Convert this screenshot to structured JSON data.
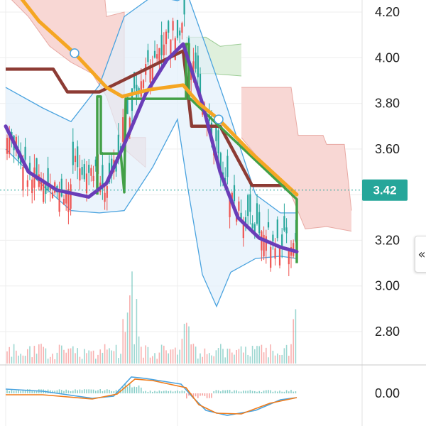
{
  "chart_data": {
    "type": "candlestick",
    "price_axis": {
      "ticks": [
        "4.20",
        "4.00",
        "3.80",
        "3.60",
        "3.40",
        "3.20",
        "3.00",
        "2.80"
      ],
      "range": [
        2.68,
        4.27
      ]
    },
    "last_price_label": "3.42",
    "last_price": 3.42,
    "macd_axis": {
      "ticks": [
        "0.00"
      ]
    },
    "colors": {
      "up": "#26a69a",
      "down": "#ef5350",
      "ema_orange": "#f5a623",
      "purple": "#6a3db8",
      "green_step": "#43a047",
      "brown_step": "#8d3b34",
      "bollinger": "#4aa3df",
      "cloud_bear": "#f8d7d4",
      "cloud_bull": "#dff0dc",
      "badge": "#26a69a"
    },
    "series": {
      "orange_line": [
        {
          "x": 20,
          "y": 4.3
        },
        {
          "x": 55,
          "y": 4.16
        },
        {
          "x": 105,
          "y": 4.02
        },
        {
          "x": 150,
          "y": 3.87
        },
        {
          "x": 172,
          "y": 3.83
        },
        {
          "x": 210,
          "y": 3.86
        },
        {
          "x": 258,
          "y": 3.88
        },
        {
          "x": 280,
          "y": 3.8
        },
        {
          "x": 308,
          "y": 3.73
        },
        {
          "x": 355,
          "y": 3.58
        },
        {
          "x": 390,
          "y": 3.48
        },
        {
          "x": 418,
          "y": 3.4
        }
      ],
      "orange_markers": [
        {
          "x": 105,
          "y": 4.02
        },
        {
          "x": 308,
          "y": 3.73
        }
      ],
      "purple_line": [
        {
          "x": 8,
          "y": 3.7
        },
        {
          "x": 40,
          "y": 3.5
        },
        {
          "x": 80,
          "y": 3.42
        },
        {
          "x": 125,
          "y": 3.39
        },
        {
          "x": 150,
          "y": 3.45
        },
        {
          "x": 175,
          "y": 3.62
        },
        {
          "x": 205,
          "y": 3.84
        },
        {
          "x": 235,
          "y": 3.99
        },
        {
          "x": 258,
          "y": 4.06
        },
        {
          "x": 285,
          "y": 3.8
        },
        {
          "x": 310,
          "y": 3.5
        },
        {
          "x": 335,
          "y": 3.3
        },
        {
          "x": 365,
          "y": 3.21
        },
        {
          "x": 395,
          "y": 3.17
        },
        {
          "x": 418,
          "y": 3.15
        }
      ],
      "green_step": [
        {
          "x": 137,
          "y": 3.4
        },
        {
          "x": 137,
          "y": 3.83
        },
        {
          "x": 142,
          "y": 3.83
        },
        {
          "x": 142,
          "y": 3.58
        },
        {
          "x": 170,
          "y": 3.58
        },
        {
          "x": 175,
          "y": 3.41
        },
        {
          "x": 177,
          "y": 3.82
        },
        {
          "x": 262,
          "y": 3.82
        },
        {
          "x": 262,
          "y": 4.06
        },
        {
          "x": 266,
          "y": 4.06
        },
        {
          "x": 266,
          "y": 3.82
        },
        {
          "x": 268,
          "y": 3.82
        },
        {
          "x": 418,
          "y": 3.38
        },
        {
          "x": 418,
          "y": 3.1
        }
      ],
      "brown_step": [
        {
          "x": 8,
          "y": 3.95
        },
        {
          "x": 75,
          "y": 3.95
        },
        {
          "x": 95,
          "y": 3.85
        },
        {
          "x": 140,
          "y": 3.85
        },
        {
          "x": 258,
          "y": 4.03
        },
        {
          "x": 270,
          "y": 3.7
        },
        {
          "x": 310,
          "y": 3.7
        },
        {
          "x": 355,
          "y": 3.44
        },
        {
          "x": 405,
          "y": 3.44
        }
      ],
      "bollinger_upper": [
        {
          "x": 8,
          "y": 3.87
        },
        {
          "x": 60,
          "y": 3.78
        },
        {
          "x": 100,
          "y": 3.72
        },
        {
          "x": 140,
          "y": 3.88
        },
        {
          "x": 175,
          "y": 4.18
        },
        {
          "x": 215,
          "y": 4.27
        },
        {
          "x": 250,
          "y": 4.25
        },
        {
          "x": 265,
          "y": 4.27
        },
        {
          "x": 290,
          "y": 4.05
        },
        {
          "x": 320,
          "y": 3.78
        },
        {
          "x": 360,
          "y": 3.4
        },
        {
          "x": 395,
          "y": 3.32
        },
        {
          "x": 418,
          "y": 3.32
        }
      ],
      "bollinger_lower": [
        {
          "x": 8,
          "y": 3.6
        },
        {
          "x": 60,
          "y": 3.44
        },
        {
          "x": 100,
          "y": 3.33
        },
        {
          "x": 140,
          "y": 3.32
        },
        {
          "x": 175,
          "y": 3.33
        },
        {
          "x": 215,
          "y": 3.52
        },
        {
          "x": 250,
          "y": 3.73
        },
        {
          "x": 265,
          "y": 3.42
        },
        {
          "x": 285,
          "y": 3.05
        },
        {
          "x": 305,
          "y": 2.91
        },
        {
          "x": 325,
          "y": 3.06
        },
        {
          "x": 360,
          "y": 3.12
        },
        {
          "x": 395,
          "y": 3.13
        },
        {
          "x": 418,
          "y": 3.12
        }
      ],
      "cloud_bear_top": [
        {
          "x": 8,
          "y": 4.35
        },
        {
          "x": 145,
          "y": 4.35
        },
        {
          "x": 150,
          "y": 4.18
        },
        {
          "x": 175,
          "y": 4.2
        },
        {
          "x": 175,
          "y": 3.65
        },
        {
          "x": 205,
          "y": 3.65
        },
        {
          "x": 205,
          "y": 3.52
        }
      ],
      "cloud_bear_bottom": [
        {
          "x": 8,
          "y": 4.28
        },
        {
          "x": 40,
          "y": 4.18
        },
        {
          "x": 70,
          "y": 4.05
        },
        {
          "x": 100,
          "y": 3.98
        },
        {
          "x": 130,
          "y": 3.93
        },
        {
          "x": 150,
          "y": 3.83
        },
        {
          "x": 175,
          "y": 3.6
        },
        {
          "x": 205,
          "y": 3.52
        }
      ],
      "cloud_bull_top": [
        {
          "x": 262,
          "y": 4.09
        },
        {
          "x": 290,
          "y": 4.09
        },
        {
          "x": 310,
          "y": 4.05
        },
        {
          "x": 340,
          "y": 4.06
        }
      ],
      "cloud_bull_bottom": [
        {
          "x": 262,
          "y": 3.93
        },
        {
          "x": 300,
          "y": 3.93
        },
        {
          "x": 340,
          "y": 3.92
        }
      ],
      "cloud_bear2_top": [
        {
          "x": 340,
          "y": 3.87
        },
        {
          "x": 410,
          "y": 3.87
        },
        {
          "x": 420,
          "y": 3.66
        },
        {
          "x": 455,
          "y": 3.66
        },
        {
          "x": 460,
          "y": 3.62
        },
        {
          "x": 485,
          "y": 3.62
        },
        {
          "x": 495,
          "y": 3.33
        }
      ],
      "cloud_bear2_bottom": [
        {
          "x": 340,
          "y": 3.65
        },
        {
          "x": 380,
          "y": 3.5
        },
        {
          "x": 410,
          "y": 3.4
        },
        {
          "x": 430,
          "y": 3.25
        },
        {
          "x": 460,
          "y": 3.26
        },
        {
          "x": 495,
          "y": 3.24
        }
      ]
    }
  }
}
